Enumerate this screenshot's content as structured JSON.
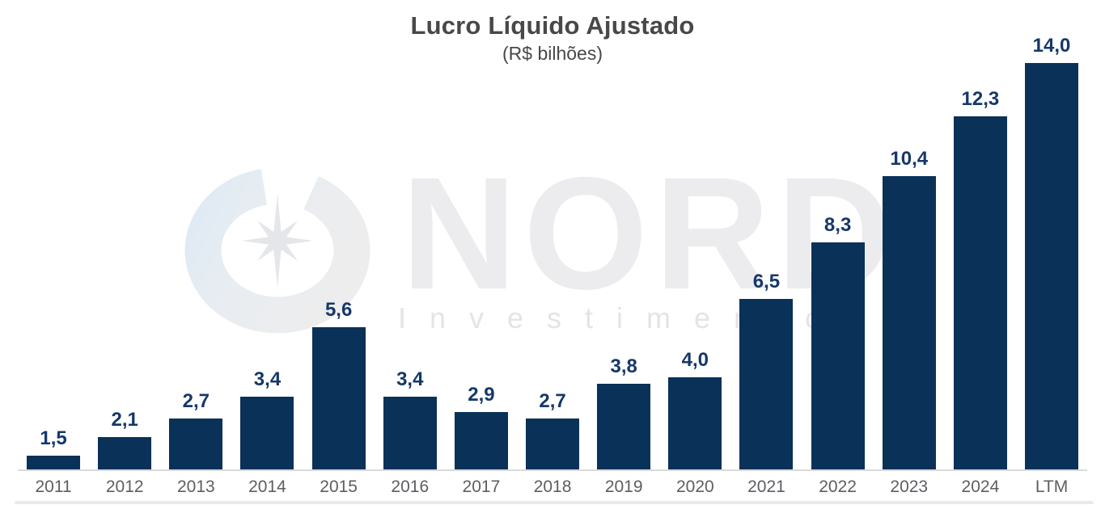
{
  "header": {
    "title": "Lucro Líquido Ajustado",
    "subtitle": "(R$ bilhões)"
  },
  "watermark": {
    "brand": "NORD",
    "subtext": "Investimentos",
    "logo_icon": "compass-rose-icon"
  },
  "chart_data": {
    "type": "bar",
    "title": "Lucro Líquido Ajustado",
    "subtitle": "(R$ bilhões)",
    "xlabel": "",
    "ylabel": "",
    "categories": [
      "2011",
      "2012",
      "2013",
      "2014",
      "2015",
      "2016",
      "2017",
      "2018",
      "2019",
      "2020",
      "2021",
      "2022",
      "2023",
      "2024",
      "LTM"
    ],
    "values": [
      1.5,
      2.1,
      2.7,
      3.4,
      5.6,
      3.4,
      2.9,
      2.7,
      3.8,
      4.0,
      6.5,
      8.3,
      10.4,
      12.3,
      14.0
    ],
    "value_labels": [
      "1,5",
      "2,1",
      "2,7",
      "3,4",
      "5,6",
      "3,4",
      "2,9",
      "2,7",
      "3,8",
      "4,0",
      "6,5",
      "8,3",
      "10,4",
      "12,3",
      "14,0"
    ],
    "unit": "R$ bilhões",
    "decimal_separator": ",",
    "ylim": [
      1.05,
      15.0
    ],
    "grid": false,
    "legend": false,
    "value_labels_position": "above-bars",
    "colors": {
      "bar": "#0a3158",
      "value_label": "#15386b",
      "tick_label": "#5d5e62",
      "title": "#48484a",
      "axis_line": "#d9dadc",
      "watermark_text": "#ececee",
      "watermark_shape": "#e4e6e9"
    }
  }
}
